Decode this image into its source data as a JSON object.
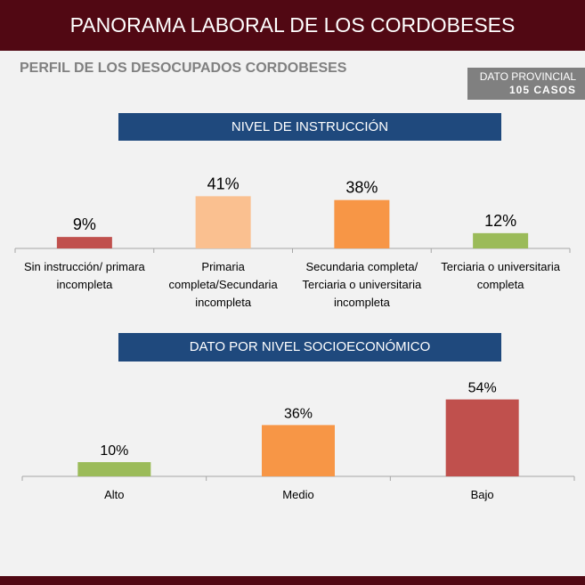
{
  "header": {
    "title": "PANORAMA LABORAL DE LOS CORDOBESES",
    "subtitle": "PERFIL DE LOS DESOCUPADOS CORDOBESES",
    "badge_line1": "DATO PROVINCIAL",
    "badge_line2": "105 CASOS"
  },
  "colors": {
    "header_bg": "#510813",
    "section_bg": "#1f497d"
  },
  "chart_data": [
    {
      "type": "bar",
      "title": "NIVEL DE INSTRUCCIÓN",
      "categories": [
        [
          "Sin instrucción/ primara",
          "incompleta"
        ],
        [
          "Primaria",
          "completa/Secundaria",
          "incompleta"
        ],
        [
          "Secundaria completa/",
          "Terciaria o universitaria",
          "incompleta"
        ],
        [
          "Terciaria o universitaria",
          "completa"
        ]
      ],
      "values": [
        9,
        41,
        38,
        12
      ],
      "labels": [
        "9%",
        "41%",
        "38%",
        "12%"
      ],
      "colors": [
        "#c0504d",
        "#fac090",
        "#f79646",
        "#9bbb59"
      ],
      "unit": "%"
    },
    {
      "type": "bar",
      "title": "DATO POR NIVEL SOCIOECONÓMICO",
      "categories": [
        [
          "Alto"
        ],
        [
          "Medio"
        ],
        [
          "Bajo"
        ]
      ],
      "values": [
        10,
        36,
        54
      ],
      "labels": [
        "10%",
        "36%",
        "54%"
      ],
      "colors": [
        "#9bbb59",
        "#f79646",
        "#c0504d"
      ],
      "unit": "%"
    }
  ]
}
